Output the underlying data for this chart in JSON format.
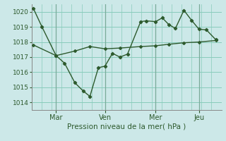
{
  "xlabel": "Pression niveau de la mer( hPa )",
  "background_color": "#cce8e8",
  "grid_color": "#88ccbb",
  "line_color": "#2d5a2d",
  "separator_color": "#7aaa99",
  "ylim": [
    1013.5,
    1020.5
  ],
  "ytick_values": [
    1014,
    1015,
    1016,
    1017,
    1018,
    1019,
    1020
  ],
  "xtick_labels": [
    "Mar",
    "Ven",
    "Mer",
    "Jeu"
  ],
  "xtick_positions": [
    0.12,
    0.38,
    0.65,
    0.88
  ],
  "vline_positions": [
    0.12,
    0.38,
    0.65,
    0.88
  ],
  "series1_x": [
    0.0,
    0.045,
    0.12,
    0.165,
    0.22,
    0.265,
    0.3,
    0.345,
    0.38,
    0.42,
    0.46,
    0.5,
    0.57,
    0.6,
    0.65,
    0.685,
    0.72,
    0.755,
    0.8,
    0.84,
    0.88,
    0.92,
    0.97
  ],
  "series1_y": [
    1020.2,
    1019.0,
    1017.1,
    1016.6,
    1015.3,
    1014.75,
    1014.4,
    1016.3,
    1016.4,
    1017.25,
    1017.0,
    1017.2,
    1019.35,
    1019.4,
    1019.35,
    1019.6,
    1019.15,
    1018.9,
    1020.1,
    1019.45,
    1018.85,
    1018.8,
    1018.15
  ],
  "series2_x": [
    0.0,
    0.12,
    0.22,
    0.3,
    0.38,
    0.46,
    0.57,
    0.65,
    0.72,
    0.8,
    0.88,
    0.97
  ],
  "series2_y": [
    1017.8,
    1017.1,
    1017.4,
    1017.7,
    1017.55,
    1017.6,
    1017.7,
    1017.75,
    1017.85,
    1017.95,
    1018.0,
    1018.1
  ],
  "xlim": [
    -0.01,
    1.0
  ],
  "figsize": [
    3.2,
    2.0
  ],
  "dpi": 100
}
